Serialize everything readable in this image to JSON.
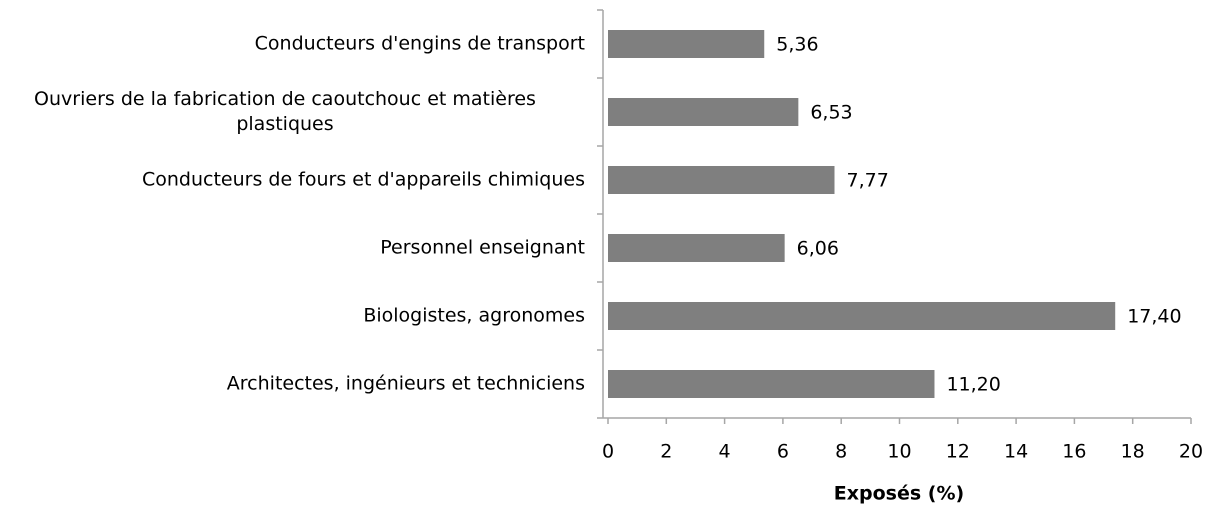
{
  "chart_data": {
    "type": "bar",
    "orientation": "horizontal",
    "categories": [
      "Conducteurs d'engins de transport",
      "Ouvriers de la fabrication de caoutchouc et matières plastiques",
      "Conducteurs de fours et d'appareils chimiques",
      "Personnel enseignant",
      "Biologistes, agronomes",
      "Architectes, ingénieurs et techniciens"
    ],
    "values": [
      5.36,
      6.53,
      7.77,
      6.06,
      17.4,
      11.2
    ],
    "value_labels": [
      "5,36",
      "6,53",
      "7,77",
      "6,06",
      "17,40",
      "11,20"
    ],
    "color": "#7f7f7f",
    "xlabel": "Exposés (%)",
    "xlim": [
      0,
      20
    ],
    "xticks": [
      0,
      2,
      4,
      6,
      8,
      10,
      12,
      14,
      16,
      18,
      20
    ]
  }
}
